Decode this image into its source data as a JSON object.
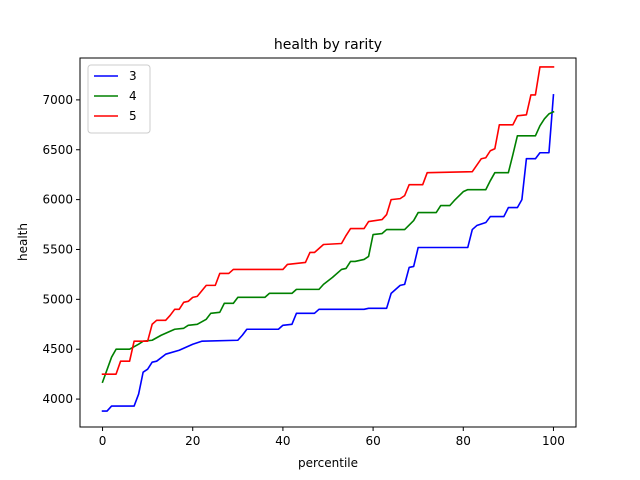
{
  "chart_data": {
    "type": "line",
    "title": "health by rarity",
    "xlabel": "percentile",
    "ylabel": "health",
    "xlim": [
      -5,
      105
    ],
    "ylim": [
      3720,
      7420
    ],
    "xticks": [
      0,
      20,
      40,
      60,
      80,
      100
    ],
    "yticks": [
      4000,
      4500,
      5000,
      5500,
      6000,
      6500,
      7000
    ],
    "grid": false,
    "legend_position": "top-left",
    "series": [
      {
        "name": "3",
        "color": "#0000ff",
        "points": [
          [
            0,
            3880
          ],
          [
            1,
            3880
          ],
          [
            2,
            3930
          ],
          [
            7,
            3930
          ],
          [
            8,
            4050
          ],
          [
            9,
            4270
          ],
          [
            10,
            4300
          ],
          [
            11,
            4370
          ],
          [
            12,
            4380
          ],
          [
            14,
            4450
          ],
          [
            17,
            4490
          ],
          [
            20,
            4550
          ],
          [
            22,
            4580
          ],
          [
            30,
            4590
          ],
          [
            31,
            4640
          ],
          [
            32,
            4700
          ],
          [
            39,
            4700
          ],
          [
            40,
            4740
          ],
          [
            42,
            4750
          ],
          [
            43,
            4860
          ],
          [
            47,
            4860
          ],
          [
            48,
            4900
          ],
          [
            58,
            4900
          ],
          [
            59,
            4910
          ],
          [
            63,
            4910
          ],
          [
            64,
            5060
          ],
          [
            66,
            5140
          ],
          [
            67,
            5150
          ],
          [
            68,
            5320
          ],
          [
            69,
            5330
          ],
          [
            70,
            5520
          ],
          [
            81,
            5520
          ],
          [
            82,
            5700
          ],
          [
            83,
            5740
          ],
          [
            85,
            5770
          ],
          [
            86,
            5830
          ],
          [
            89,
            5830
          ],
          [
            90,
            5920
          ],
          [
            92,
            5920
          ],
          [
            93,
            6000
          ],
          [
            94,
            6410
          ],
          [
            96,
            6410
          ],
          [
            97,
            6470
          ],
          [
            98,
            6470
          ],
          [
            99,
            6470
          ],
          [
            100,
            7050
          ]
        ]
      },
      {
        "name": "4",
        "color": "#008000",
        "points": [
          [
            0,
            4170
          ],
          [
            2,
            4420
          ],
          [
            3,
            4500
          ],
          [
            6,
            4500
          ],
          [
            8,
            4550
          ],
          [
            9,
            4580
          ],
          [
            11,
            4590
          ],
          [
            13,
            4640
          ],
          [
            16,
            4700
          ],
          [
            18,
            4710
          ],
          [
            19,
            4740
          ],
          [
            21,
            4750
          ],
          [
            23,
            4800
          ],
          [
            24,
            4860
          ],
          [
            26,
            4870
          ],
          [
            27,
            4960
          ],
          [
            29,
            4960
          ],
          [
            30,
            5020
          ],
          [
            36,
            5020
          ],
          [
            37,
            5060
          ],
          [
            42,
            5060
          ],
          [
            43,
            5100
          ],
          [
            48,
            5100
          ],
          [
            49,
            5150
          ],
          [
            51,
            5220
          ],
          [
            53,
            5300
          ],
          [
            54,
            5310
          ],
          [
            55,
            5380
          ],
          [
            56,
            5380
          ],
          [
            58,
            5400
          ],
          [
            59,
            5430
          ],
          [
            60,
            5650
          ],
          [
            62,
            5660
          ],
          [
            63,
            5700
          ],
          [
            67,
            5700
          ],
          [
            69,
            5790
          ],
          [
            70,
            5870
          ],
          [
            74,
            5870
          ],
          [
            75,
            5940
          ],
          [
            77,
            5940
          ],
          [
            78,
            5990
          ],
          [
            80,
            6080
          ],
          [
            81,
            6100
          ],
          [
            85,
            6100
          ],
          [
            86,
            6190
          ],
          [
            87,
            6270
          ],
          [
            90,
            6270
          ],
          [
            91,
            6450
          ],
          [
            92,
            6640
          ],
          [
            96,
            6640
          ],
          [
            97,
            6740
          ],
          [
            98,
            6810
          ],
          [
            99,
            6860
          ],
          [
            100,
            6880
          ]
        ]
      },
      {
        "name": "5",
        "color": "#ff0000",
        "points": [
          [
            0,
            4250
          ],
          [
            3,
            4250
          ],
          [
            4,
            4380
          ],
          [
            6,
            4380
          ],
          [
            7,
            4580
          ],
          [
            10,
            4580
          ],
          [
            11,
            4750
          ],
          [
            12,
            4790
          ],
          [
            14,
            4790
          ],
          [
            15,
            4840
          ],
          [
            16,
            4900
          ],
          [
            17,
            4900
          ],
          [
            18,
            4970
          ],
          [
            19,
            4980
          ],
          [
            20,
            5020
          ],
          [
            21,
            5030
          ],
          [
            23,
            5140
          ],
          [
            25,
            5140
          ],
          [
            26,
            5260
          ],
          [
            28,
            5260
          ],
          [
            29,
            5300
          ],
          [
            40,
            5300
          ],
          [
            41,
            5350
          ],
          [
            45,
            5370
          ],
          [
            46,
            5470
          ],
          [
            47,
            5470
          ],
          [
            48,
            5510
          ],
          [
            49,
            5550
          ],
          [
            53,
            5560
          ],
          [
            54,
            5640
          ],
          [
            55,
            5710
          ],
          [
            58,
            5710
          ],
          [
            59,
            5780
          ],
          [
            62,
            5800
          ],
          [
            63,
            5850
          ],
          [
            64,
            6000
          ],
          [
            66,
            6010
          ],
          [
            67,
            6040
          ],
          [
            68,
            6150
          ],
          [
            71,
            6150
          ],
          [
            72,
            6270
          ],
          [
            82,
            6280
          ],
          [
            84,
            6410
          ],
          [
            85,
            6420
          ],
          [
            86,
            6490
          ],
          [
            87,
            6510
          ],
          [
            88,
            6750
          ],
          [
            91,
            6750
          ],
          [
            92,
            6840
          ],
          [
            94,
            6850
          ],
          [
            95,
            7050
          ],
          [
            96,
            7050
          ],
          [
            97,
            7330
          ],
          [
            100,
            7330
          ]
        ]
      }
    ]
  }
}
